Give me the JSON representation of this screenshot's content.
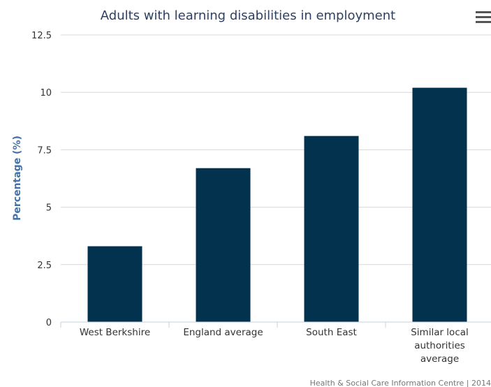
{
  "chart_data": {
    "type": "bar",
    "title": "Adults with learning disabilities in employment",
    "ylabel": "Percentage (%)",
    "xlabel": "",
    "ylim": [
      0,
      12.5
    ],
    "yticks": [
      "0",
      "2.5",
      "5",
      "7.5",
      "10",
      "12.5"
    ],
    "ytick_values": [
      0,
      2.5,
      5,
      7.5,
      10,
      12.5
    ],
    "categories": [
      "West Berkshire",
      "England average",
      "South East",
      "Similar local authorities average"
    ],
    "category_lines": [
      [
        "West Berkshire"
      ],
      [
        "England average"
      ],
      [
        "South East"
      ],
      [
        "Similar local",
        "authorities",
        "average"
      ]
    ],
    "values": [
      3.3,
      6.7,
      8.1,
      10.2
    ],
    "bar_color": "#02324e",
    "grid": true,
    "legend": "none"
  },
  "credit": "Health & Social Care Information Centre | 2014",
  "menu": {
    "icon": "hamburger-menu-icon"
  }
}
